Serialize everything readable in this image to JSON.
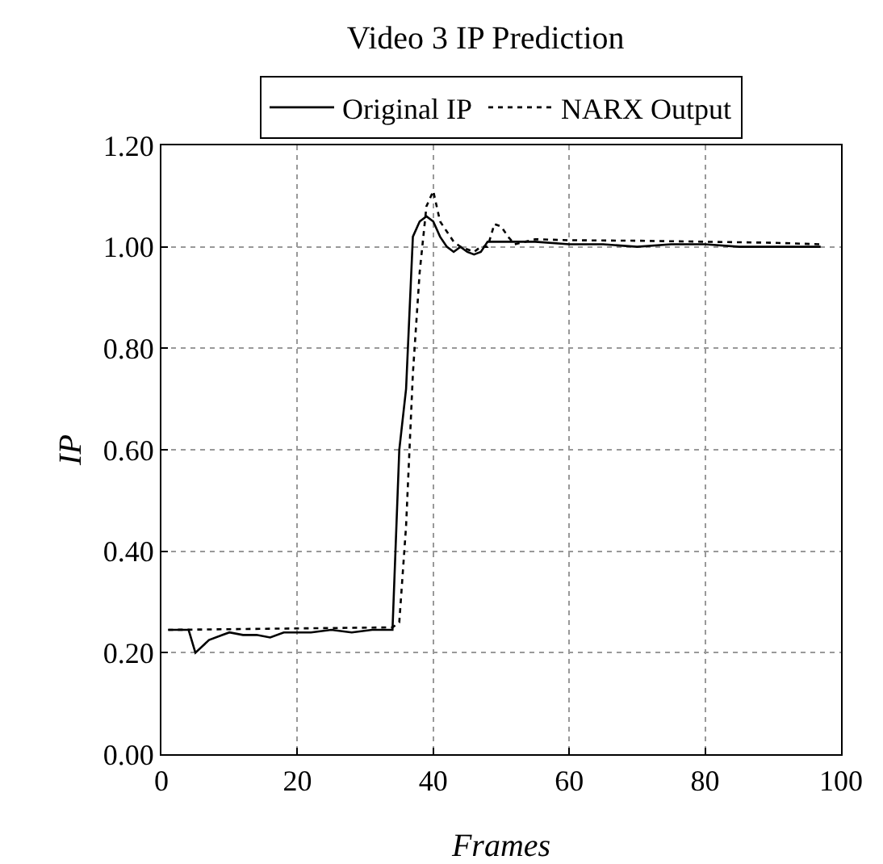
{
  "chart_data": {
    "type": "line",
    "title": "Video 3 IP Prediction",
    "xlabel": "Frames",
    "ylabel": "IP",
    "xlim": [
      0,
      100
    ],
    "xticks": [
      0,
      20,
      40,
      60,
      80,
      100
    ],
    "ylim": [
      0,
      1.2
    ],
    "yticks": [
      {
        "value": 0,
        "label": "0.00"
      },
      {
        "value": 0.2,
        "label": "0.20"
      },
      {
        "value": 0.4,
        "label": "0.40"
      },
      {
        "value": 0.6,
        "label": "0.60"
      },
      {
        "value": 0.8,
        "label": "0.80"
      },
      {
        "value": 1,
        "label": "1.00"
      },
      {
        "value": 1.2,
        "label": "1.20"
      }
    ],
    "grid": true,
    "legend": "top",
    "marker": "none",
    "series": [
      {
        "name": "Original IP",
        "color": "#000000",
        "line_style": "solid",
        "x": [
          1,
          4,
          5,
          7,
          9,
          10,
          12,
          14,
          16,
          18,
          22,
          25,
          28,
          31,
          34,
          35,
          36,
          37,
          38,
          39,
          40,
          41,
          42,
          43,
          44,
          45,
          46,
          47,
          48,
          50,
          55,
          60,
          65,
          70,
          75,
          80,
          85,
          90,
          97
        ],
        "values": [
          0.245,
          0.245,
          0.2,
          0.225,
          0.235,
          0.24,
          0.235,
          0.235,
          0.23,
          0.24,
          0.24,
          0.245,
          0.24,
          0.245,
          0.245,
          0.6,
          0.72,
          1.02,
          1.05,
          1.06,
          1.05,
          1.02,
          1.0,
          0.99,
          1.0,
          0.99,
          0.985,
          0.99,
          1.01,
          1.01,
          1.01,
          1.005,
          1.005,
          1.0,
          1.005,
          1.005,
          1.0,
          1.0,
          1.0
        ]
      },
      {
        "name": "NARX Output",
        "color": "#000000",
        "line_style": "dotted",
        "x": [
          1,
          34,
          35,
          36,
          37,
          38,
          39,
          40,
          41,
          42,
          43,
          44,
          45,
          46,
          47,
          48,
          49,
          50,
          51,
          52,
          55,
          60,
          70,
          80,
          90,
          97
        ],
        "values": [
          0.245,
          0.25,
          0.26,
          0.45,
          0.75,
          0.95,
          1.08,
          1.11,
          1.05,
          1.03,
          1.01,
          1.0,
          0.995,
          0.99,
          1.0,
          1.0,
          1.045,
          1.04,
          1.02,
          1.005,
          1.015,
          1.013,
          1.012,
          1.01,
          1.008,
          1.005
        ]
      }
    ]
  }
}
